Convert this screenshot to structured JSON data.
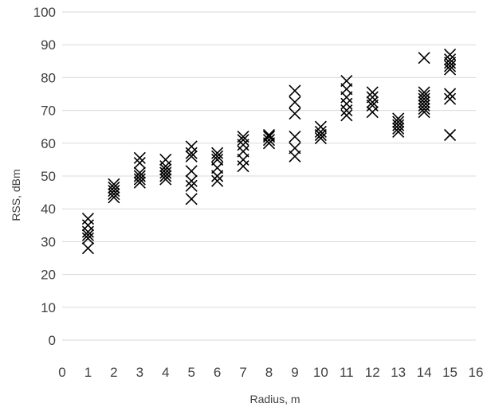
{
  "chart_data": {
    "type": "scatter",
    "title": "",
    "xlabel": "Radius, m",
    "ylabel": "RSS, dBm",
    "xlim": [
      0,
      16
    ],
    "ylim": [
      0,
      100
    ],
    "xticks": [
      0,
      1,
      2,
      3,
      4,
      5,
      6,
      7,
      8,
      9,
      10,
      11,
      12,
      13,
      14,
      15,
      16
    ],
    "yticks": [
      0,
      10,
      20,
      30,
      40,
      50,
      60,
      70,
      80,
      90,
      100
    ],
    "grid": "horizontal",
    "marker": "x",
    "marker_color": "#000000",
    "series": [
      {
        "points": [
          [
            1,
            28
          ],
          [
            1,
            31
          ],
          [
            1,
            32
          ],
          [
            1,
            33
          ],
          [
            1,
            35
          ],
          [
            1,
            37
          ],
          [
            2,
            43.5
          ],
          [
            2,
            44.5
          ],
          [
            2,
            45.5
          ],
          [
            2,
            46.5
          ],
          [
            2,
            47.5
          ],
          [
            3,
            48
          ],
          [
            3,
            49
          ],
          [
            3,
            50
          ],
          [
            3,
            51
          ],
          [
            3,
            54
          ],
          [
            3,
            55.5
          ],
          [
            4,
            49
          ],
          [
            4,
            50
          ],
          [
            4,
            51
          ],
          [
            4,
            52
          ],
          [
            4,
            53
          ],
          [
            4,
            55
          ],
          [
            5,
            43
          ],
          [
            5,
            47
          ],
          [
            5,
            48.5
          ],
          [
            5,
            51.5
          ],
          [
            5,
            56
          ],
          [
            5,
            57
          ],
          [
            5,
            59
          ],
          [
            6,
            48.5
          ],
          [
            6,
            50
          ],
          [
            6,
            52.5
          ],
          [
            6,
            55
          ],
          [
            6,
            56
          ],
          [
            6,
            57
          ],
          [
            7,
            53
          ],
          [
            7,
            55
          ],
          [
            7,
            57.5
          ],
          [
            7,
            59.5
          ],
          [
            7,
            61
          ],
          [
            7,
            62
          ],
          [
            8,
            60
          ],
          [
            8,
            61
          ],
          [
            8,
            62
          ],
          [
            8,
            62.5
          ],
          [
            9,
            56
          ],
          [
            9,
            58.5
          ],
          [
            9,
            62
          ],
          [
            9,
            69
          ],
          [
            9,
            72.5
          ],
          [
            9,
            76
          ],
          [
            10,
            61.5
          ],
          [
            10,
            62.5
          ],
          [
            10,
            63.5
          ],
          [
            10,
            65
          ],
          [
            11,
            68.5
          ],
          [
            11,
            70
          ],
          [
            11,
            72
          ],
          [
            11,
            74
          ],
          [
            11,
            76.5
          ],
          [
            11,
            79
          ],
          [
            12,
            69.5
          ],
          [
            12,
            71.5
          ],
          [
            12,
            72.5
          ],
          [
            12,
            74
          ],
          [
            12,
            75.5
          ],
          [
            13,
            63.5
          ],
          [
            13,
            64.5
          ],
          [
            13,
            65.5
          ],
          [
            13,
            66.5
          ],
          [
            13,
            67.5
          ],
          [
            14,
            69.5
          ],
          [
            14,
            70.5
          ],
          [
            14,
            71.5
          ],
          [
            14,
            72.5
          ],
          [
            14,
            73.5
          ],
          [
            14,
            74.5
          ],
          [
            14,
            75.5
          ],
          [
            14,
            86
          ],
          [
            15,
            62.5
          ],
          [
            15,
            73.5
          ],
          [
            15,
            75
          ],
          [
            15,
            82.5
          ],
          [
            15,
            83.5
          ],
          [
            15,
            84.5
          ],
          [
            15,
            85.5
          ],
          [
            15,
            87
          ]
        ]
      }
    ]
  }
}
